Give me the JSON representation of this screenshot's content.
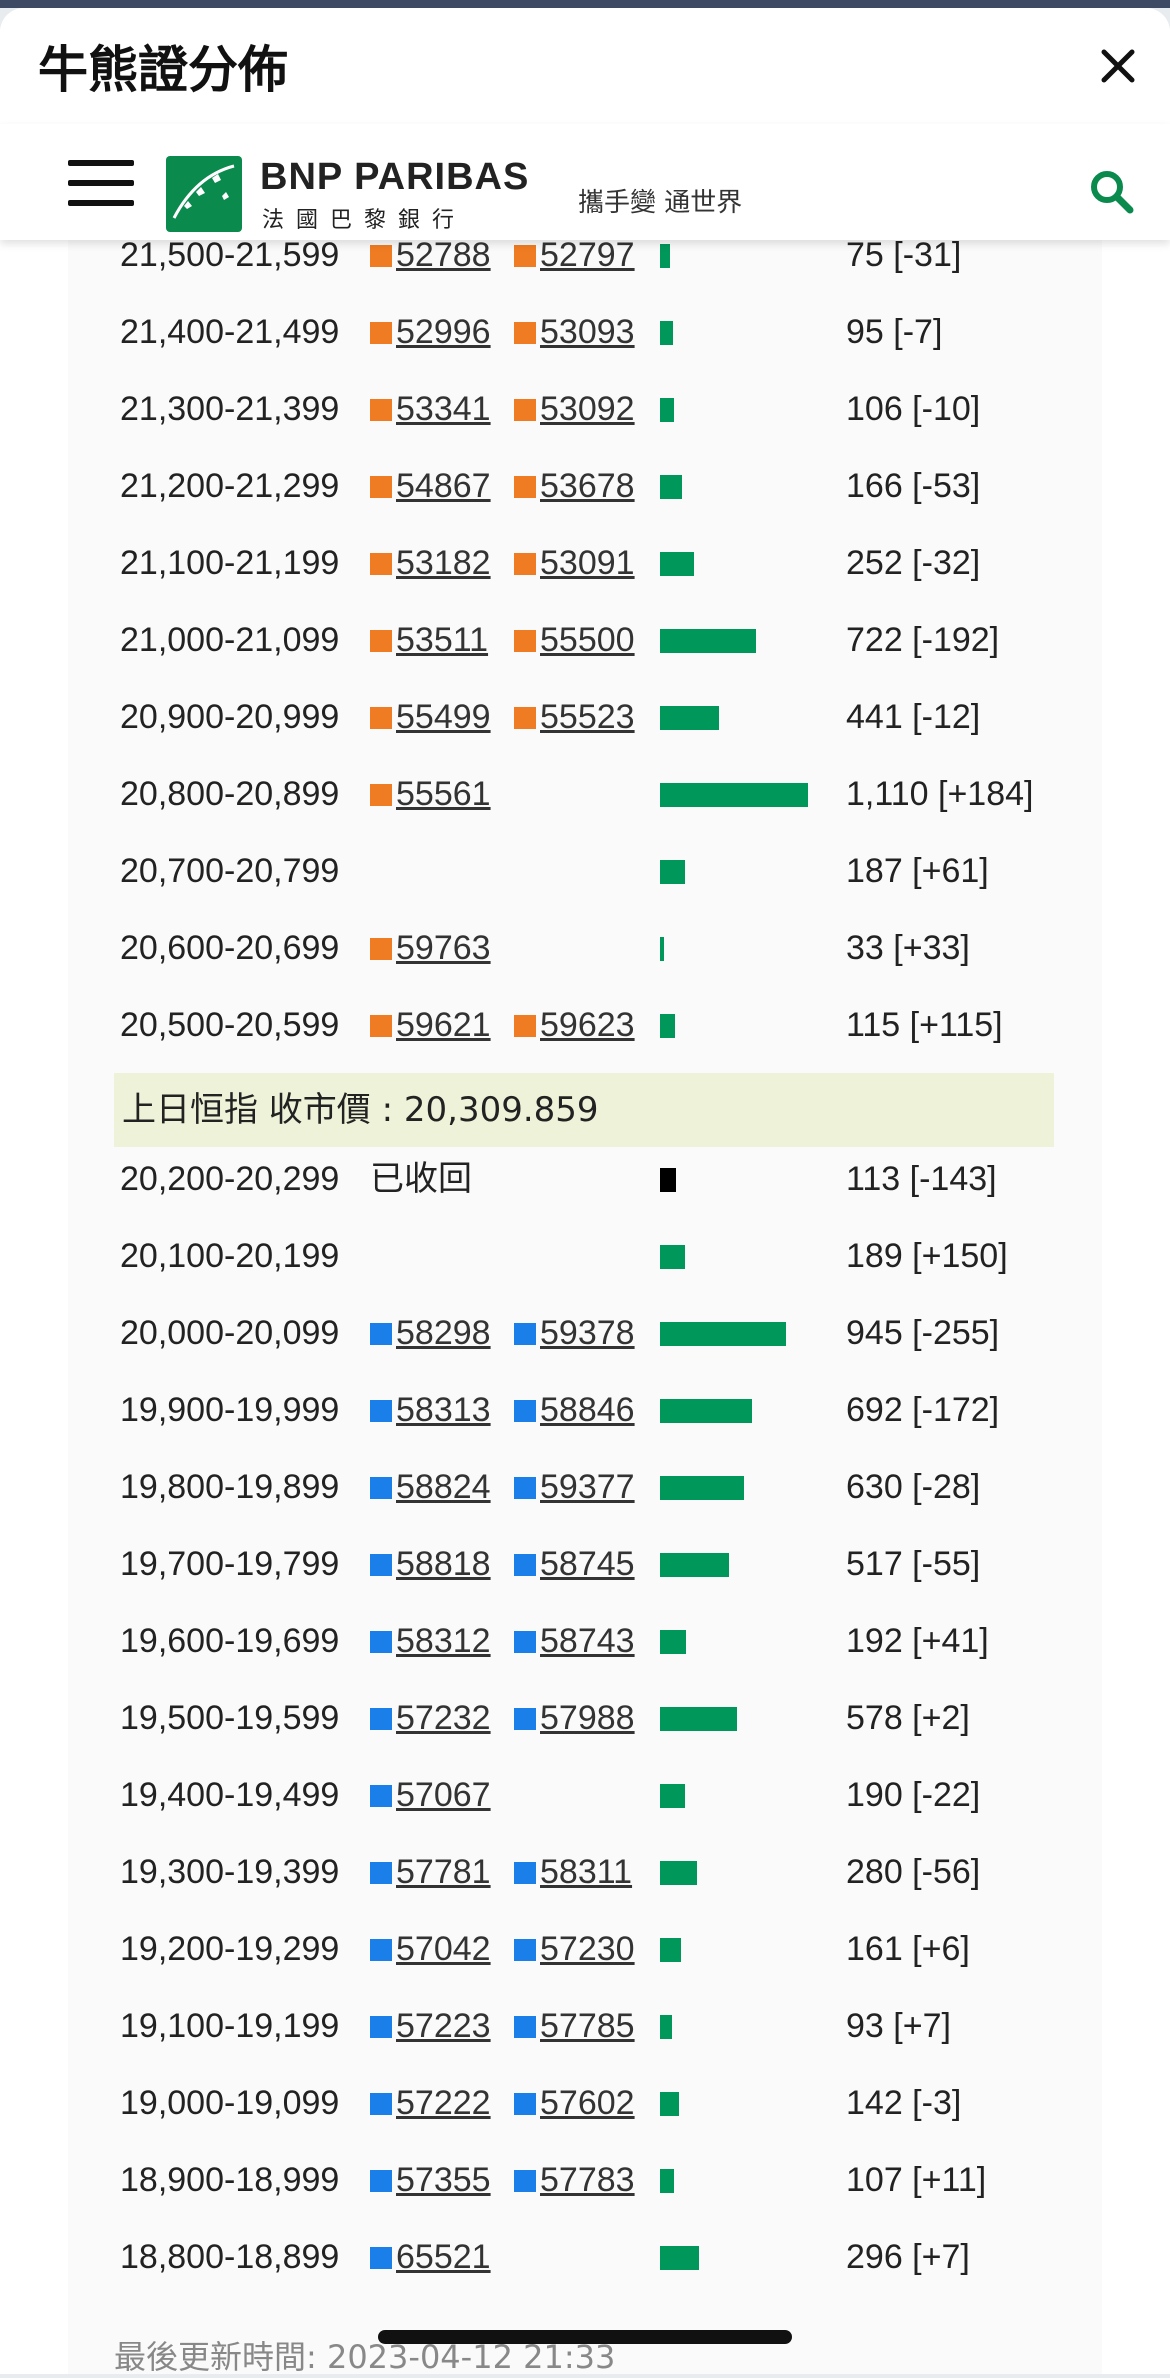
{
  "modal": {
    "title": "牛熊證分佈"
  },
  "brand": {
    "name": "BNP PARIBAS",
    "subname": "法國巴黎銀行",
    "tagline": "攜手變 通世界",
    "accent": "#0b8a4e"
  },
  "colors": {
    "bull_marker": "#ef7b22",
    "bear_marker": "#1a7fe8",
    "bar": "#00975b",
    "recalled_bar": "#000000",
    "close_banner_bg": "#eef2d8"
  },
  "rows_above": [
    {
      "range": "21,500-21,599",
      "codes": [
        "52788",
        "52797"
      ],
      "amount": "75 [-31]",
      "value": 75
    },
    {
      "range": "21,400-21,499",
      "codes": [
        "52996",
        "53093"
      ],
      "amount": "95 [-7]",
      "value": 95
    },
    {
      "range": "21,300-21,399",
      "codes": [
        "53341",
        "53092"
      ],
      "amount": "106 [-10]",
      "value": 106
    },
    {
      "range": "21,200-21,299",
      "codes": [
        "54867",
        "53678"
      ],
      "amount": "166 [-53]",
      "value": 166
    },
    {
      "range": "21,100-21,199",
      "codes": [
        "53182",
        "53091"
      ],
      "amount": "252 [-32]",
      "value": 252
    },
    {
      "range": "21,000-21,099",
      "codes": [
        "53511",
        "55500"
      ],
      "amount": "722 [-192]",
      "value": 722
    },
    {
      "range": "20,900-20,999",
      "codes": [
        "55499",
        "55523"
      ],
      "amount": "441 [-12]",
      "value": 441
    },
    {
      "range": "20,800-20,899",
      "codes": [
        "55561"
      ],
      "amount": "1,110 [+184]",
      "value": 1110
    },
    {
      "range": "20,700-20,799",
      "codes": [],
      "amount": "187 [+61]",
      "value": 187
    },
    {
      "range": "20,600-20,699",
      "codes": [
        "59763"
      ],
      "amount": "33 [+33]",
      "value": 33
    },
    {
      "range": "20,500-20,599",
      "codes": [
        "59621",
        "59623"
      ],
      "amount": "115 [+115]",
      "value": 115
    }
  ],
  "close_banner": "上日恒指 收市價 : 20,309.859",
  "rows_below": [
    {
      "range": "20,200-20,299",
      "codes": [],
      "recalled": "已收回",
      "amount": "113 [-143]",
      "value": 113
    },
    {
      "range": "20,100-20,199",
      "codes": [],
      "amount": "189 [+150]",
      "value": 189
    },
    {
      "range": "20,000-20,099",
      "codes": [
        "58298",
        "59378"
      ],
      "amount": "945 [-255]",
      "value": 945
    },
    {
      "range": "19,900-19,999",
      "codes": [
        "58313",
        "58846"
      ],
      "amount": "692 [-172]",
      "value": 692
    },
    {
      "range": "19,800-19,899",
      "codes": [
        "58824",
        "59377"
      ],
      "amount": "630 [-28]",
      "value": 630
    },
    {
      "range": "19,700-19,799",
      "codes": [
        "58818",
        "58745"
      ],
      "amount": "517 [-55]",
      "value": 517
    },
    {
      "range": "19,600-19,699",
      "codes": [
        "58312",
        "58743"
      ],
      "amount": "192 [+41]",
      "value": 192
    },
    {
      "range": "19,500-19,599",
      "codes": [
        "57232",
        "57988"
      ],
      "amount": "578 [+2]",
      "value": 578
    },
    {
      "range": "19,400-19,499",
      "codes": [
        "57067"
      ],
      "amount": "190 [-22]",
      "value": 190
    },
    {
      "range": "19,300-19,399",
      "codes": [
        "57781",
        "58311"
      ],
      "amount": "280 [-56]",
      "value": 280
    },
    {
      "range": "19,200-19,299",
      "codes": [
        "57042",
        "57230"
      ],
      "amount": "161 [+6]",
      "value": 161
    },
    {
      "range": "19,100-19,199",
      "codes": [
        "57223",
        "57785"
      ],
      "amount": "93 [+7]",
      "value": 93
    },
    {
      "range": "19,000-19,099",
      "codes": [
        "57222",
        "57602"
      ],
      "amount": "142 [-3]",
      "value": 142
    },
    {
      "range": "18,900-18,999",
      "codes": [
        "57355",
        "57783"
      ],
      "amount": "107 [+11]",
      "value": 107
    },
    {
      "range": "18,800-18,899",
      "codes": [
        "65521"
      ],
      "amount": "296 [+7]",
      "value": 296
    }
  ],
  "footer": {
    "last_updated": "最後更新時間: 2023-04-12 21:33"
  }
}
